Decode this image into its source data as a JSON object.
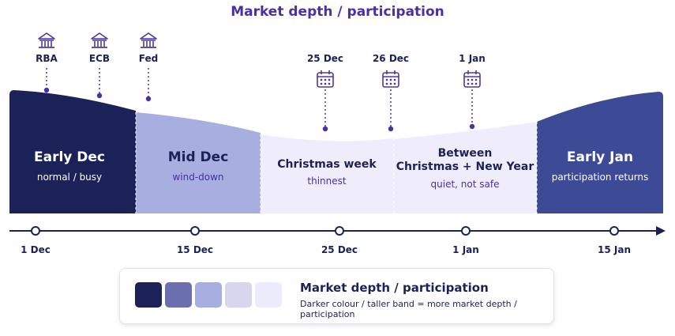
{
  "title": "Market depth / participation",
  "events": [
    {
      "label": "RBA",
      "icon": "bank-icon"
    },
    {
      "label": "ECB",
      "icon": "bank-icon"
    },
    {
      "label": "Fed",
      "icon": "bank-icon"
    },
    {
      "label": "25 Dec",
      "icon": "calendar-icon"
    },
    {
      "label": "26 Dec",
      "icon": "calendar-icon"
    },
    {
      "label": "1 Jan",
      "icon": "calendar-icon"
    }
  ],
  "periods": [
    {
      "name": "Early Dec",
      "desc": "normal / busy",
      "color": "#1a2257"
    },
    {
      "name": "Mid Dec",
      "desc": "wind-down",
      "color": "#a7aee0"
    },
    {
      "name": "Christmas week",
      "desc": "thinnest",
      "color": "#efedfb"
    },
    {
      "name_lines": [
        "Between",
        "Christmas + New Year"
      ],
      "desc": "quiet, not safe",
      "color": "#efedfb"
    },
    {
      "name": "Early Jan",
      "desc": "participation returns",
      "color": "#3d4a95"
    }
  ],
  "timeline": [
    "1 Dec",
    "15 Dec",
    "25 Dec",
    "1 Jan",
    "15 Jan"
  ],
  "legend": {
    "title": "Market depth / participation",
    "subtitle": "Darker colour / taller band = more market depth / participation",
    "swatches": [
      "#1a2257",
      "#6b6fb0",
      "#a7aee0",
      "#d6d6ee",
      "#ecebfb"
    ]
  },
  "colors": {
    "accent": "#4a2fa6",
    "dark": "#1a2257",
    "icon": "#4a3a9a"
  }
}
